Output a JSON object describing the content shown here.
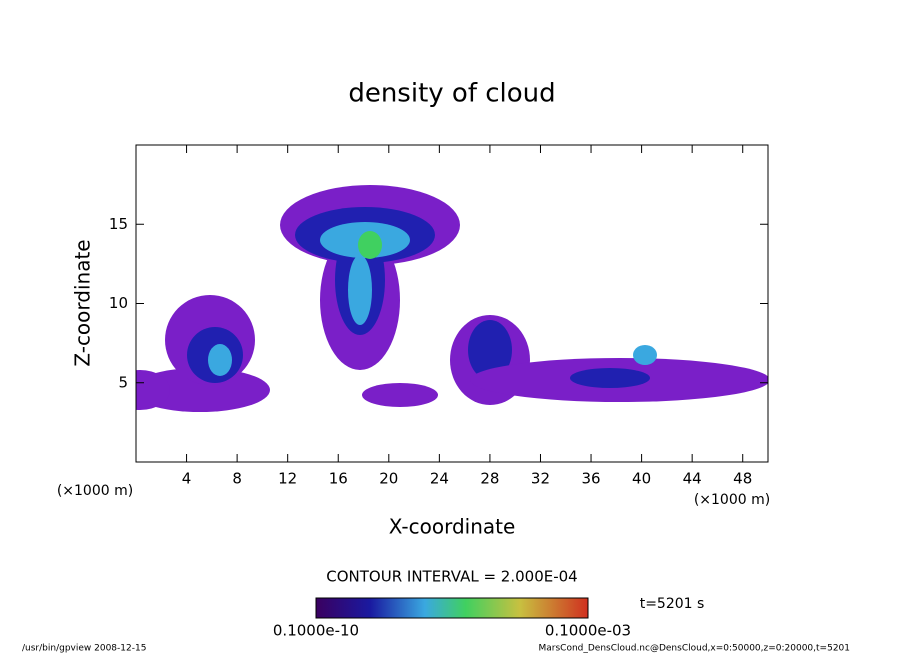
{
  "chart_data": {
    "type": "contour",
    "title": "density of cloud",
    "x_label": "X-coordinate",
    "y_label": "Z-coordinate",
    "x_unit": "(×1000 m)",
    "y_unit": "(×1000 m)",
    "xlim": [
      0,
      50
    ],
    "xticks": [
      4,
      8,
      12,
      16,
      20,
      24,
      28,
      32,
      36,
      40,
      44,
      48
    ],
    "ylim": [
      0,
      20
    ],
    "yticks": [
      5,
      10,
      15
    ],
    "contour_interval": "CONTOUR INTERVAL = 2.000E-04",
    "time": "t=5201 s",
    "colorbar_labels": [
      "0.1000e-10",
      "0.1000e-03"
    ],
    "footer_left": "/usr/bin/gpview  2008-12-15",
    "footer_right": "MarsCond_DensCloud.nc@DensCloud,x=0:50000,z=0:20000,t=5201"
  }
}
